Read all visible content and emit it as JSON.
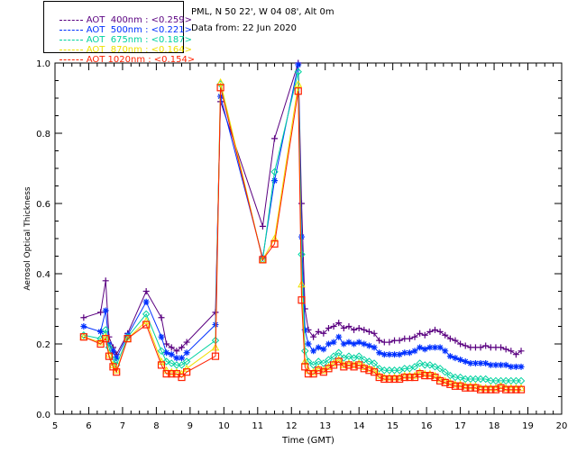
{
  "legend": [
    {
      "label": "AOT  400nm : <0.259>",
      "color": "#5a0080"
    },
    {
      "label": "AOT  500nm : <0.221>",
      "color": "#0030ff"
    },
    {
      "label": "AOT  675nm : <0.187>",
      "color": "#00d2a0"
    },
    {
      "label": "AOT  870nm : <0.164>",
      "color": "#f0e000"
    },
    {
      "label": "AOT 1020nm : <0.154>",
      "color": "#ff2000"
    }
  ],
  "info": {
    "site": "PML, N 50 22', W 04 08', Alt 0m",
    "date": "Data from: 22 Jun 2020"
  },
  "chart_data": {
    "type": "line",
    "xlabel": "Time (GMT)",
    "ylabel": "Aerosol Optical Thickness",
    "xlim": [
      5,
      20
    ],
    "ylim": [
      0.0,
      1.0
    ],
    "xticks": [
      "5",
      "6",
      "7",
      "8",
      "9",
      "10",
      "11",
      "12",
      "13",
      "14",
      "15",
      "16",
      "17",
      "18",
      "19",
      "20"
    ],
    "yticks": [
      "0.0",
      "0.2",
      "0.4",
      "0.6",
      "0.8",
      "1.0"
    ],
    "x": [
      5.85,
      6.35,
      6.5,
      6.6,
      6.72,
      6.82,
      7.15,
      7.7,
      8.15,
      8.3,
      8.45,
      8.6,
      8.75,
      8.9,
      9.75,
      9.9,
      11.15,
      11.5,
      12.2,
      12.3,
      12.4,
      12.5,
      12.65,
      12.8,
      12.95,
      13.1,
      13.25,
      13.4,
      13.55,
      13.7,
      13.85,
      14.0,
      14.15,
      14.3,
      14.45,
      14.6,
      14.75,
      14.9,
      15.05,
      15.2,
      15.35,
      15.5,
      15.65,
      15.8,
      15.95,
      16.1,
      16.25,
      16.4,
      16.55,
      16.7,
      16.85,
      17.0,
      17.15,
      17.3,
      17.45,
      17.6,
      17.75,
      17.9,
      18.05,
      18.2,
      18.35,
      18.5,
      18.65,
      18.8
    ],
    "series": [
      {
        "name": "AOT  400nm : <0.259>",
        "color": "#5a0080",
        "marker": "plus",
        "values": [
          0.275,
          0.29,
          0.38,
          0.22,
          0.19,
          0.17,
          0.23,
          0.35,
          0.275,
          0.2,
          0.19,
          0.18,
          0.19,
          0.205,
          0.29,
          0.89,
          0.535,
          0.785,
          1.0,
          0.6,
          0.3,
          0.24,
          0.22,
          0.235,
          0.23,
          0.245,
          0.25,
          0.26,
          0.245,
          0.25,
          0.24,
          0.245,
          0.24,
          0.235,
          0.23,
          0.21,
          0.205,
          0.205,
          0.21,
          0.21,
          0.215,
          0.215,
          0.22,
          0.23,
          0.225,
          0.235,
          0.24,
          0.235,
          0.225,
          0.215,
          0.21,
          0.2,
          0.195,
          0.19,
          0.19,
          0.19,
          0.195,
          0.19,
          0.19,
          0.19,
          0.185,
          0.18,
          0.17,
          0.18
        ]
      },
      {
        "name": "AOT  500nm : <0.221>",
        "color": "#0030ff",
        "marker": "asterisk",
        "values": [
          0.25,
          0.235,
          0.295,
          0.2,
          0.18,
          0.16,
          0.225,
          0.32,
          0.22,
          0.175,
          0.17,
          0.16,
          0.16,
          0.175,
          0.255,
          0.905,
          0.445,
          0.665,
          0.995,
          0.505,
          0.24,
          0.2,
          0.18,
          0.19,
          0.185,
          0.2,
          0.205,
          0.22,
          0.2,
          0.205,
          0.2,
          0.205,
          0.2,
          0.195,
          0.19,
          0.175,
          0.17,
          0.17,
          0.17,
          0.17,
          0.175,
          0.175,
          0.18,
          0.19,
          0.185,
          0.19,
          0.19,
          0.19,
          0.18,
          0.165,
          0.16,
          0.155,
          0.15,
          0.145,
          0.145,
          0.145,
          0.145,
          0.14,
          0.14,
          0.14,
          0.14,
          0.135,
          0.135,
          0.135
        ]
      },
      {
        "name": "AOT  675nm : <0.187>",
        "color": "#00d2a0",
        "marker": "diamond",
        "values": [
          0.225,
          0.215,
          0.24,
          0.19,
          0.155,
          0.14,
          0.22,
          0.285,
          0.18,
          0.15,
          0.145,
          0.14,
          0.14,
          0.15,
          0.21,
          0.94,
          0.44,
          0.69,
          0.975,
          0.455,
          0.18,
          0.15,
          0.14,
          0.15,
          0.145,
          0.155,
          0.165,
          0.175,
          0.16,
          0.165,
          0.16,
          0.165,
          0.155,
          0.15,
          0.145,
          0.13,
          0.125,
          0.125,
          0.125,
          0.125,
          0.13,
          0.13,
          0.135,
          0.145,
          0.14,
          0.14,
          0.135,
          0.13,
          0.12,
          0.11,
          0.105,
          0.105,
          0.1,
          0.1,
          0.1,
          0.1,
          0.1,
          0.095,
          0.095,
          0.095,
          0.095,
          0.095,
          0.095,
          0.095
        ]
      },
      {
        "name": "AOT  870nm : <0.164>",
        "color": "#f0e000",
        "marker": "triangle",
        "values": [
          0.22,
          0.205,
          0.22,
          0.17,
          0.14,
          0.125,
          0.215,
          0.265,
          0.15,
          0.125,
          0.12,
          0.12,
          0.115,
          0.13,
          0.19,
          0.945,
          0.44,
          0.5,
          0.94,
          0.37,
          0.15,
          0.125,
          0.12,
          0.13,
          0.125,
          0.135,
          0.145,
          0.155,
          0.14,
          0.145,
          0.14,
          0.145,
          0.135,
          0.13,
          0.125,
          0.11,
          0.105,
          0.105,
          0.105,
          0.105,
          0.11,
          0.11,
          0.11,
          0.12,
          0.115,
          0.115,
          0.11,
          0.1,
          0.095,
          0.09,
          0.085,
          0.085,
          0.08,
          0.08,
          0.08,
          0.075,
          0.075,
          0.075,
          0.075,
          0.08,
          0.075,
          0.075,
          0.075,
          0.075
        ]
      },
      {
        "name": "AOT 1020nm : <0.154>",
        "color": "#ff2000",
        "marker": "square",
        "values": [
          0.22,
          0.2,
          0.215,
          0.165,
          0.135,
          0.12,
          0.215,
          0.255,
          0.14,
          0.115,
          0.115,
          0.115,
          0.105,
          0.12,
          0.165,
          0.93,
          0.44,
          0.485,
          0.92,
          0.325,
          0.135,
          0.115,
          0.115,
          0.125,
          0.12,
          0.13,
          0.14,
          0.15,
          0.135,
          0.14,
          0.135,
          0.14,
          0.13,
          0.125,
          0.12,
          0.105,
          0.1,
          0.1,
          0.1,
          0.1,
          0.105,
          0.105,
          0.105,
          0.115,
          0.11,
          0.11,
          0.105,
          0.095,
          0.09,
          0.085,
          0.08,
          0.08,
          0.075,
          0.075,
          0.075,
          0.07,
          0.07,
          0.07,
          0.07,
          0.075,
          0.07,
          0.07,
          0.07,
          0.07
        ]
      }
    ],
    "grid": false,
    "legend_position": "top-left"
  }
}
